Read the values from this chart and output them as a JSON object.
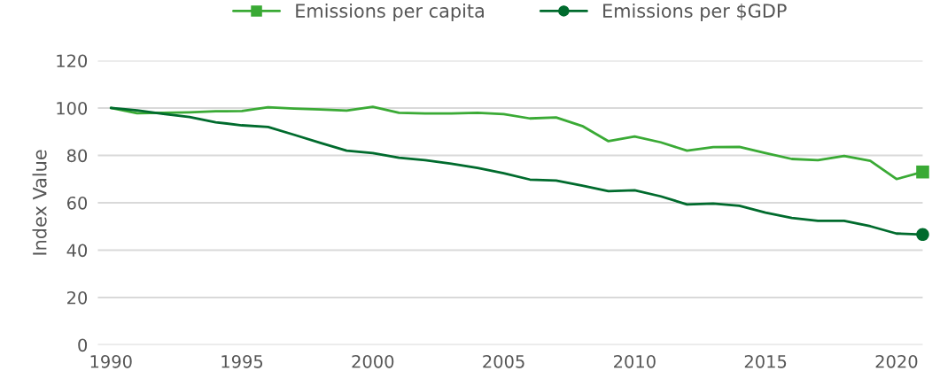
{
  "chart_data": {
    "type": "line",
    "ylabel": "Index Value",
    "x": [
      1990,
      1991,
      1992,
      1993,
      1994,
      1995,
      1996,
      1997,
      1998,
      1999,
      2000,
      2001,
      2002,
      2003,
      2004,
      2005,
      2006,
      2007,
      2008,
      2009,
      2010,
      2011,
      2012,
      2013,
      2014,
      2015,
      2016,
      2017,
      2018,
      2019,
      2020,
      2021
    ],
    "series": [
      {
        "name": "Emissions per capita",
        "color": "#3aaa35",
        "values": [
          100,
          97.8,
          98,
          98.2,
          98.6,
          98.7,
          100.3,
          99.8,
          99.4,
          98.9,
          100.5,
          98,
          97.7,
          97.7,
          98,
          97.4,
          95.6,
          96,
          92.4,
          86,
          88,
          85.5,
          82,
          83.5,
          83.6,
          81,
          78.5,
          78,
          79.8,
          77.7,
          70,
          73
        ]
      },
      {
        "name": "Emissions per $GDP",
        "color": "#006b2d",
        "values": [
          100,
          99,
          97.5,
          96.2,
          94,
          92.7,
          92,
          88.7,
          85.3,
          82,
          81,
          79,
          78,
          76.5,
          74.7,
          72.5,
          69.8,
          69.4,
          67.2,
          64.9,
          65.3,
          62.7,
          59.3,
          59.7,
          58.7,
          55.8,
          53.6,
          52.4,
          52.4,
          50.1,
          47,
          46.6
        ]
      },
      {
        "type": "scatter",
        "color": "#3aaa35",
        "marker": "square",
        "x": [
          2021
        ],
        "values": [
          73
        ]
      },
      {
        "type": "scatter",
        "color": "#006b2d",
        "marker": "circle",
        "x": [
          2021
        ],
        "values": [
          46.6
        ]
      }
    ],
    "xlim": [
      1989.5,
      2021
    ],
    "xticks": [
      1990,
      1995,
      2000,
      2005,
      2010,
      2015,
      2020
    ],
    "ylim": [
      0,
      120
    ],
    "yticks": [
      0,
      20,
      40,
      60,
      80,
      100,
      120
    ],
    "grid": "y",
    "legend": "top"
  }
}
